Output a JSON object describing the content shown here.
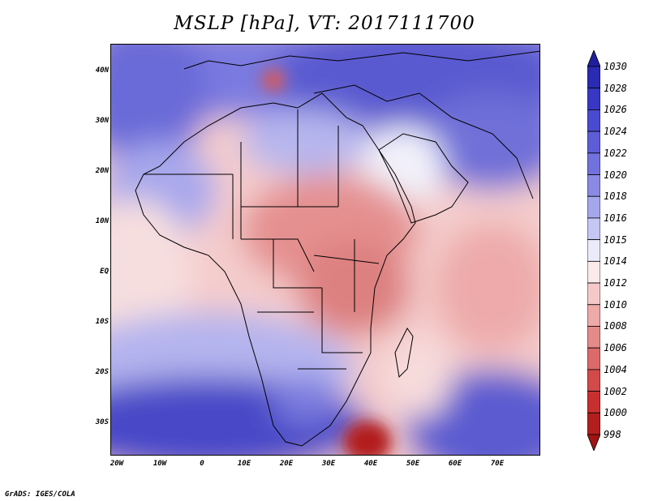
{
  "title": "MSLP [hPa], VT: 2017111700",
  "footer": "GrADS: IGES/COLA",
  "map": {
    "region": "Africa and Arabian Peninsula",
    "lon_range": [
      -23,
      80
    ],
    "lat_range": [
      -37,
      45
    ],
    "features": [
      "country borders",
      "coastlines",
      "filled pressure contours"
    ],
    "high_pressure_areas": [
      "Southern Ocean",
      "Mediterranean / Europe",
      "South Atlantic",
      "southern Indian Ocean"
    ],
    "low_pressure_areas": [
      "Central Africa",
      "low off Libya coast",
      "deep low southeast of South Africa"
    ]
  },
  "axes": {
    "y_labels": [
      "40N",
      "30N",
      "20N",
      "10N",
      "EQ",
      "10S",
      "20S",
      "30S"
    ],
    "x_labels": [
      "20W",
      "10W",
      "0",
      "10E",
      "20E",
      "30E",
      "40E",
      "50E",
      "60E",
      "70E"
    ]
  },
  "colorbar": {
    "labels": [
      "1030",
      "1028",
      "1026",
      "1024",
      "1022",
      "1020",
      "1018",
      "1016",
      "1015",
      "1014",
      "1012",
      "1010",
      "1008",
      "1006",
      "1004",
      "1002",
      "1000",
      "998"
    ],
    "colors": [
      "#1f1f9e",
      "#2a2ab2",
      "#3838c4",
      "#4a4ad0",
      "#5d5dd8",
      "#7272de",
      "#8a8ae4",
      "#a6a6ec",
      "#c6c6f4",
      "#eaeaf9",
      "#fbeaea",
      "#f5c9c9",
      "#eea9a9",
      "#e58a8a",
      "#dc6a6a",
      "#d34a4a",
      "#c83030",
      "#b21e1e",
      "#a01414"
    ]
  }
}
